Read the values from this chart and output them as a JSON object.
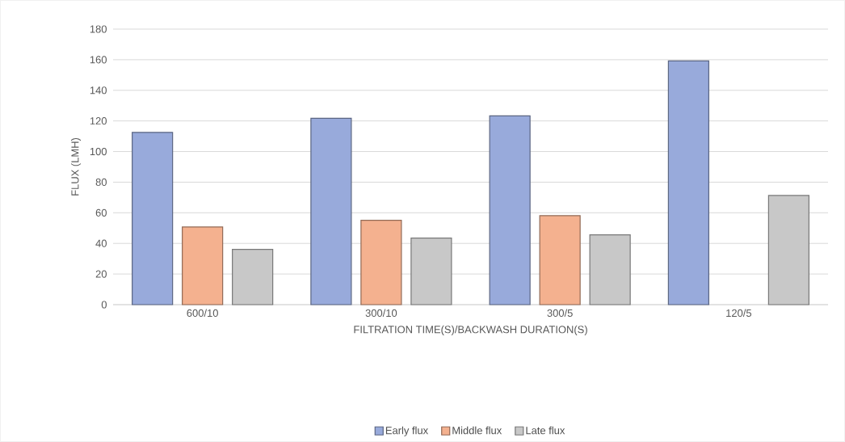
{
  "chart_data": {
    "type": "bar",
    "xlabel": "FILTRATION TIME(S)/BACKWASH DURATION(S)",
    "ylabel": "FLUX (LMH)",
    "categories": [
      "600/10",
      "300/10",
      "300/5",
      "120/5"
    ],
    "series": [
      {
        "name": "Early flux",
        "color": "#98aadb",
        "values": [
          112.5,
          121.7,
          123.3,
          159.2
        ]
      },
      {
        "name": "Middle flux",
        "color": "#f4b18f",
        "values": [
          50.7,
          55.1,
          58.1,
          null
        ]
      },
      {
        "name": "Late flux",
        "color": "#c8c8c8",
        "values": [
          36.1,
          43.5,
          45.6,
          71.3
        ]
      }
    ],
    "ylim": [
      0,
      180
    ],
    "yticks": [
      0,
      20,
      40,
      60,
      80,
      100,
      120,
      140,
      160,
      180
    ],
    "grid": "y",
    "legend": "bottom"
  }
}
